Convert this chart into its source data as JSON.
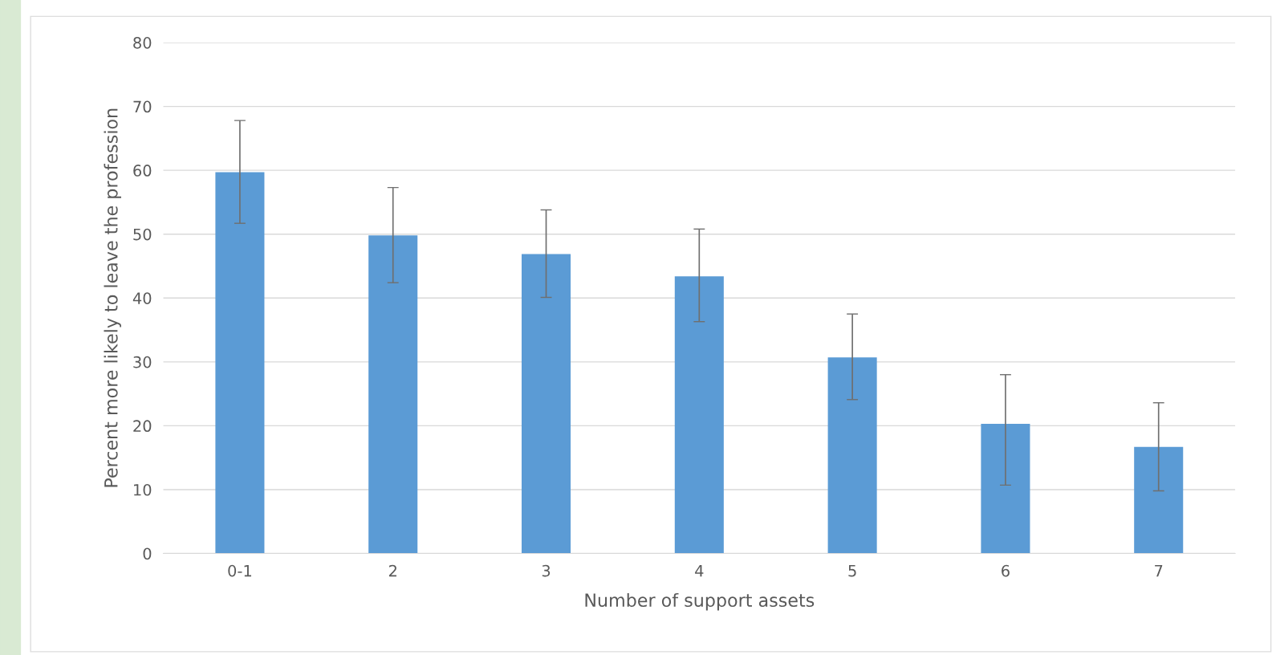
{
  "chart_data": {
    "type": "bar",
    "xlabel": "Number of support assets",
    "ylabel": "Percent more likely to leave the profession",
    "categories": [
      "0-1",
      "2",
      "3",
      "4",
      "5",
      "6",
      "7"
    ],
    "values": [
      59.7,
      49.8,
      46.9,
      43.4,
      30.7,
      20.3,
      16.7
    ],
    "errors": [
      [
        51.7,
        67.8
      ],
      [
        42.4,
        57.3
      ],
      [
        40.1,
        53.8
      ],
      [
        36.3,
        50.8
      ],
      [
        24.1,
        37.5
      ],
      [
        10.7,
        28.0
      ],
      [
        9.8,
        23.6
      ]
    ],
    "color": "#5b9bd5",
    "ylim": [
      0,
      80
    ],
    "yticks": [
      0,
      10,
      20,
      30,
      40,
      50,
      60,
      70,
      80
    ],
    "grid": "y"
  }
}
